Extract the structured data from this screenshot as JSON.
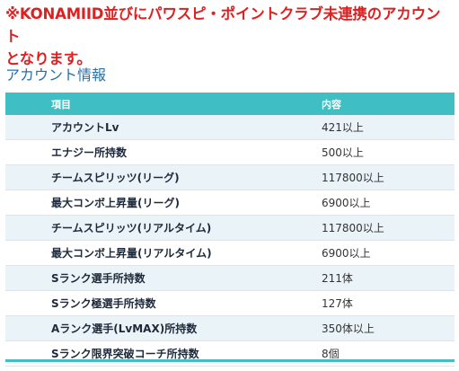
{
  "notice": {
    "line1": "※KONAMIID並びにパワスピ・ポイントクラブ未連携のアカウント",
    "line2": "となります。"
  },
  "section": {
    "title": "アカウント情報"
  },
  "table": {
    "headers": {
      "item": "項目",
      "value": "内容"
    },
    "rows": [
      {
        "item": "アカウントLv",
        "value": "421以上"
      },
      {
        "item": "エナジー所持数",
        "value": "500以上"
      },
      {
        "item": "チームスピリッツ(リーグ)",
        "value": "117800以上"
      },
      {
        "item": "最大コンボ上昇量(リーグ)",
        "value": "6900以上"
      },
      {
        "item": "チームスピリッツ(リアルタイム)",
        "value": "117800以上"
      },
      {
        "item": "最大コンボ上昇量(リアルタイム)",
        "value": "6900以上"
      },
      {
        "item": "Sランク選手所持数",
        "value": "211体"
      },
      {
        "item": "Sランク極選手所持数",
        "value": "127体"
      },
      {
        "item": "Aランク選手(LvMAX)所持数",
        "value": "350体以上"
      },
      {
        "item": "Sランク限界突破コーチ所持数",
        "value": "8個"
      }
    ]
  },
  "colors": {
    "notice_red": "#e02020",
    "section_blue": "#2a6fa8",
    "header_teal": "#3fbfc4",
    "row_alt": "#e9f3f8"
  }
}
